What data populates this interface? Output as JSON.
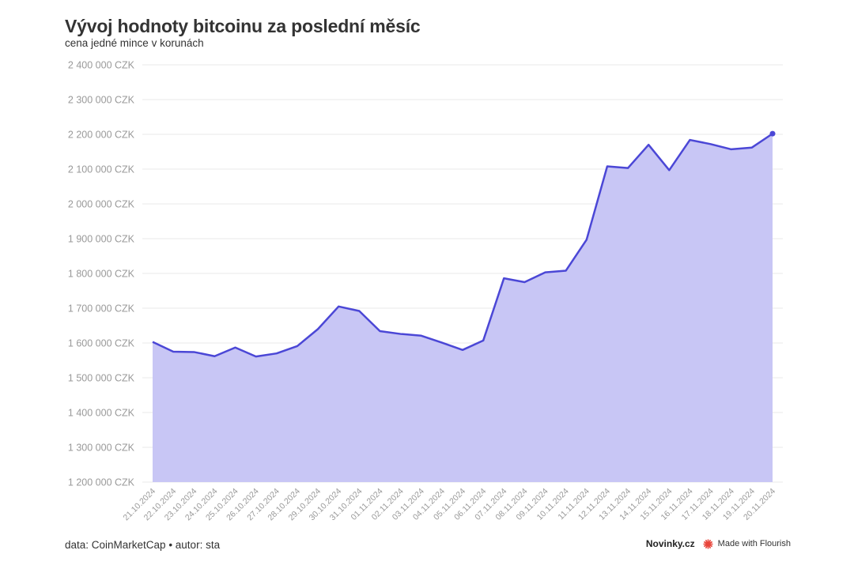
{
  "header": {
    "title": "Vývoj hodnoty bitcoinu za poslední měsíc",
    "subtitle": "cena jedné mince v korunách"
  },
  "footer": {
    "source": "data: CoinMarketCap • autor: sta",
    "brand": "Novinky.cz",
    "flourish": "Made with Flourish",
    "flourish_icon": "flourish-icon"
  },
  "colors": {
    "line": "#4b47d6",
    "area": "#c8c6f5",
    "grid": "#e8e8e8",
    "tick": "#999999",
    "flourish_red": "#e8443a"
  },
  "chart_data": {
    "type": "area",
    "grid": true,
    "ylim": [
      1200000,
      2400000
    ],
    "yticks": [
      1200000,
      1300000,
      1400000,
      1500000,
      1600000,
      1700000,
      1800000,
      1900000,
      2000000,
      2100000,
      2200000,
      2300000,
      2400000
    ],
    "ytick_labels": [
      "1 200 000 CZK",
      "1 300 000 CZK",
      "1 400 000 CZK",
      "1 500 000 CZK",
      "1 600 000 CZK",
      "1 700 000 CZK",
      "1 800 000 CZK",
      "1 900 000 CZK",
      "2 000 000 CZK",
      "2 100 000 CZK",
      "2 200 000 CZK",
      "2 300 000 CZK",
      "2 400 000 CZK"
    ],
    "x": [
      "21.10.2024",
      "22.10.2024",
      "23.10.2024",
      "24.10.2024",
      "25.10.2024",
      "26.10.2024",
      "27.10.2024",
      "28.10.2024",
      "29.10.2024",
      "30.10.2024",
      "31.10.2024",
      "01.11.2024",
      "02.11.2024",
      "03.11.2024",
      "04.11.2024",
      "05.11.2024",
      "06.11.2024",
      "07.11.2024",
      "08.11.2024",
      "09.11.2024",
      "10.11.2024",
      "11.11.2024",
      "12.11.2024",
      "13.11.2024",
      "14.11.2024",
      "15.11.2024",
      "16.11.2024",
      "17.11.2024",
      "18.11.2024",
      "19.11.2024",
      "20.11.2024"
    ],
    "series": [
      {
        "values": [
          1603000,
          1575000,
          1574000,
          1562000,
          1587000,
          1561000,
          1570000,
          1591000,
          1640000,
          1705000,
          1692000,
          1634000,
          1626000,
          1621000,
          1601000,
          1580000,
          1607000,
          1786000,
          1775000,
          1803000,
          1808000,
          1897000,
          2108000,
          2103000,
          2170000,
          2097000,
          2184000,
          2172000,
          2157000,
          2162000,
          2202000
        ]
      }
    ]
  }
}
